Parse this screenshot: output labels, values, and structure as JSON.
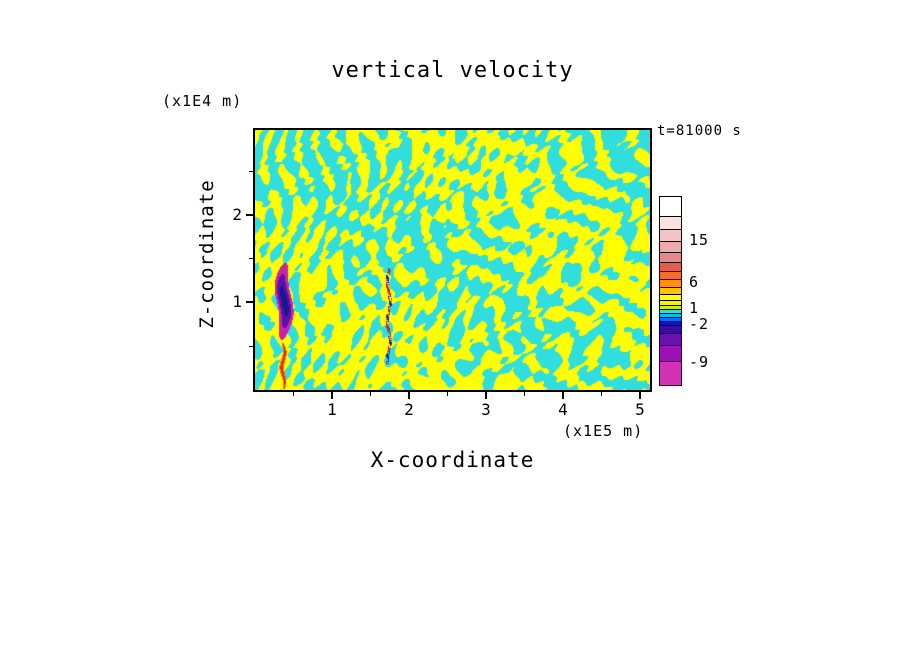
{
  "chart_data": {
    "type": "heatmap",
    "title": "vertical velocity",
    "xlabel": "X-coordinate",
    "ylabel": "Z-coordinate",
    "x_unit": "(x1E5 m)",
    "z_unit": "(x1E4 m)",
    "time_label": "t=81000 s",
    "x_ticks": [
      1,
      2,
      3,
      4,
      5
    ],
    "z_ticks": [
      1,
      2
    ],
    "x_range": [
      0,
      5.13
    ],
    "z_range": [
      0,
      2.97
    ],
    "levels": [
      -9,
      -2,
      1,
      6,
      15
    ],
    "legend_position": "right",
    "grid": false,
    "field_colors": {
      "positive": "#ffff00",
      "negative": "#30dede"
    },
    "features": [
      {
        "name": "weak-mixed-streak",
        "kind": "dotted",
        "x": 1.73,
        "z": 0.85,
        "rx": 0.02,
        "rz": 0.55,
        "colors": [
          "#cc2020",
          "#2020a0",
          "#8030a0"
        ]
      },
      {
        "name": "strong-updraft-streak",
        "kind": "streak",
        "x": 0.36,
        "z": 0.28,
        "rx": 0.032,
        "rz": 0.26,
        "colors": [
          "#dd2418",
          "#ff8800"
        ]
      },
      {
        "name": "strong-downdraft-core",
        "kind": "core",
        "x": 0.37,
        "z": 1.02,
        "rx": 0.1,
        "rz": 0.44,
        "colors": [
          "#cc22aa",
          "#5c10a8",
          "#181890"
        ]
      }
    ],
    "colorbar": {
      "segments": [
        {
          "color": "#ffffff",
          "h": 19
        },
        {
          "color": "#f8e3e3",
          "h": 13
        },
        {
          "color": "#f2c6c6",
          "h": 12
        },
        {
          "color": "#ecaaaa",
          "h": 11
        },
        {
          "color": "#e68888",
          "h": 10
        },
        {
          "color": "#ea5a4a",
          "h": 9
        },
        {
          "color": "#f2702e",
          "h": 8
        },
        {
          "color": "#ff8f0e",
          "h": 8
        },
        {
          "color": "#ffc400",
          "h": 7
        },
        {
          "color": "#ffff00",
          "h": 6
        },
        {
          "color": "#f2f200",
          "h": 5
        },
        {
          "color": "#d8ea00",
          "h": 4
        },
        {
          "color": "#33dcdc",
          "h": 4
        },
        {
          "color": "#00bfe8",
          "h": 4
        },
        {
          "color": "#0070ff",
          "h": 4
        },
        {
          "color": "#0a18b4",
          "h": 4
        },
        {
          "color": "#3c0ca0",
          "h": 8
        },
        {
          "color": "#6a10ae",
          "h": 12
        },
        {
          "color": "#9c12b4",
          "h": 16
        },
        {
          "color": "#d233b5",
          "h": 24
        }
      ],
      "labels": [
        {
          "text": "15",
          "offset": 44
        },
        {
          "text": "6",
          "offset": 86
        },
        {
          "text": "1",
          "offset": 112
        },
        {
          "text": "-2",
          "offset": 128
        },
        {
          "text": "-9",
          "offset": 166
        }
      ]
    }
  }
}
